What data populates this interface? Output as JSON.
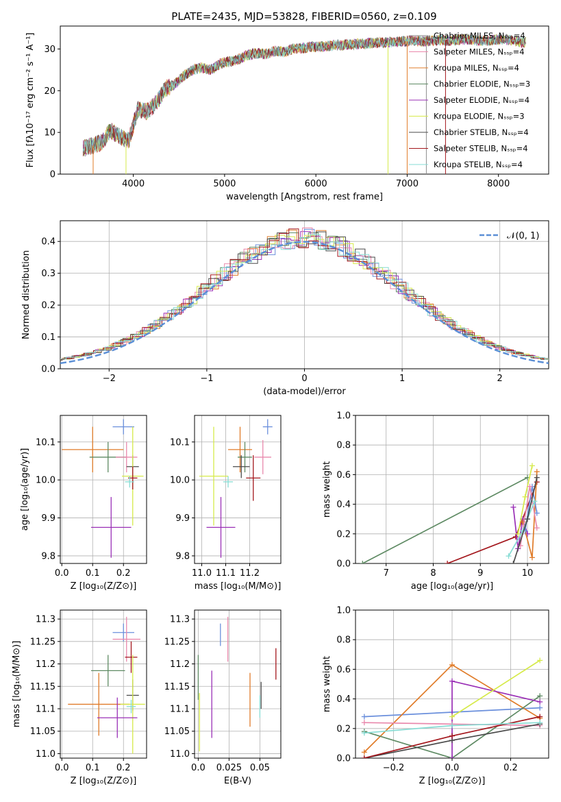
{
  "figure": {
    "title": "PLATE=2435, MJD=53828, FIBERID=0560, z=0.109"
  },
  "colors": {
    "cornflower": "#6a8fdc",
    "orange": "#e07b28",
    "sage": "#5e8a63",
    "purple": "#9a2fb6",
    "pink": "#e988ac",
    "lime": "#d6ea4a",
    "dark": "#4a4a4a",
    "crimson": "#a3161c",
    "aqua": "#86dcd4",
    "gray": "#8c8c8c",
    "normal": "#5b8fd6"
  },
  "chart_data": [
    {
      "id": "spectrum",
      "type": "line",
      "xlabel": "wavelength [Angstrom, rest frame]",
      "ylabel": "Flux [fλ10⁻¹⁷ erg cm⁻² s⁻¹ A⁻¹]",
      "xlim": [
        3200,
        8550
      ],
      "ylim": [
        0,
        35.5
      ],
      "xticks": [
        4000,
        5000,
        6000,
        7000,
        8000
      ],
      "yticks": [
        0,
        10,
        20,
        30
      ],
      "grid": false,
      "legend_position": "top-right",
      "legend": [
        "Chabrier MILES, Nₛₛₚ=4",
        "Salpeter MILES, Nₛₛₚ=4",
        "Kroupa MILES, Nₛₛₚ=4",
        "Chabrier ELODIE, Nₛₛₚ=3",
        "Salpeter ELODIE, Nₛₛₚ=4",
        "Kroupa ELODIE, Nₛₛₚ=3",
        "Chabrier STELIB, Nₛₛₚ=4",
        "Salpeter STELIB, Nₛₛₚ=4",
        "Kroupa STELIB, Nₛₛₚ=4"
      ],
      "x": [
        3450,
        3550,
        3650,
        3750,
        3850,
        3950,
        4050,
        4150,
        4250,
        4350,
        4450,
        4550,
        4650,
        4750,
        4850,
        4950,
        5050,
        5150,
        5250,
        5350,
        5450,
        5550,
        5650,
        5750,
        5850,
        5950,
        6050,
        6150,
        6250,
        6350,
        6450,
        6550,
        6650,
        6750,
        6850,
        6950,
        7050,
        7150,
        7250,
        7350,
        7450,
        7550,
        7650,
        7750,
        7850,
        7950,
        8050,
        8150,
        8250
      ],
      "y": [
        6.2,
        6.8,
        7.5,
        10.5,
        9.0,
        8.0,
        15.5,
        15.0,
        17.0,
        20.5,
        21.5,
        23.5,
        25.0,
        25.5,
        25.0,
        26.5,
        27.0,
        27.5,
        28.5,
        29.0,
        28.8,
        29.5,
        29.3,
        30.0,
        30.2,
        30.5,
        30.5,
        30.8,
        31.0,
        31.0,
        31.2,
        31.3,
        31.5,
        31.5,
        31.7,
        31.8,
        32.0,
        31.8,
        32.0,
        32.1,
        32.0,
        32.2,
        32.3,
        32.1,
        32.0,
        32.2,
        32.3,
        32.1,
        31.6
      ]
    },
    {
      "id": "residuals",
      "type": "line",
      "xlabel": "(data-model)/error",
      "ylabel": "Normed distribution",
      "xlim": [
        -2.5,
        2.5
      ],
      "ylim": [
        0,
        0.465
      ],
      "xticks": [
        -2,
        -1,
        0,
        1,
        2
      ],
      "yticks": [
        0.0,
        0.1,
        0.2,
        0.3,
        0.4
      ],
      "grid": true,
      "legend_position": "top-right",
      "legend": [
        "𝒩(0, 1)"
      ],
      "normal_curve": {
        "mu": 0,
        "sigma": 1
      }
    },
    {
      "id": "age-vs-Z",
      "type": "scatter",
      "xlabel": "Z [log₁₀(Z/Z⊙)]",
      "ylabel": "age  [log₁₀(age/yr)]",
      "xlim": [
        -0.005,
        0.275
      ],
      "ylim": [
        9.78,
        10.17
      ],
      "xticks": [
        0.0,
        0.1,
        0.2
      ],
      "yticks": [
        9.8,
        9.9,
        10.0,
        10.1
      ],
      "grid": true,
      "points": [
        {
          "c": "cornflower",
          "x": 0.2,
          "xe": 0.035,
          "y": 10.14,
          "ye": 0.02
        },
        {
          "c": "orange",
          "x": 0.1,
          "xe": 0.1,
          "y": 10.08,
          "ye": 0.06
        },
        {
          "c": "sage",
          "x": 0.15,
          "xe": 0.06,
          "y": 10.06,
          "ye": 0.04
        },
        {
          "c": "pink",
          "x": 0.21,
          "xe": 0.035,
          "y": 10.06,
          "ye": 0.04
        },
        {
          "c": "dark",
          "x": 0.23,
          "xe": 0.02,
          "y": 10.035,
          "ye": 0.03
        },
        {
          "c": "lime",
          "x": 0.23,
          "xe": 0.035,
          "y": 10.01,
          "ye": 0.13
        },
        {
          "c": "crimson",
          "x": 0.23,
          "xe": 0.015,
          "y": 10.005,
          "ye": 0.03
        },
        {
          "c": "aqua",
          "x": 0.22,
          "xe": 0.015,
          "y": 9.995,
          "ye": 0.015
        },
        {
          "c": "purple",
          "x": 0.16,
          "xe": 0.065,
          "y": 9.875,
          "ye": 0.08
        }
      ]
    },
    {
      "id": "age-vs-mass",
      "type": "scatter",
      "xlabel": "mass [log₁₀(M/M⊙)]",
      "ylabel": "",
      "xlim": [
        10.97,
        11.33
      ],
      "ylim": [
        9.78,
        10.17
      ],
      "xticks": [
        11.0,
        11.1,
        11.2
      ],
      "yticks": [
        9.8,
        9.9,
        10.0,
        10.1
      ],
      "grid": true,
      "points": [
        {
          "c": "cornflower",
          "x": 11.275,
          "xe": 0.02,
          "y": 10.14,
          "ye": 0.02
        },
        {
          "c": "orange",
          "x": 11.16,
          "xe": 0.05,
          "y": 10.08,
          "ye": 0.06
        },
        {
          "c": "sage",
          "x": 11.18,
          "xe": 0.03,
          "y": 10.06,
          "ye": 0.04
        },
        {
          "c": "pink",
          "x": 11.255,
          "xe": 0.035,
          "y": 10.06,
          "ye": 0.045
        },
        {
          "c": "dark",
          "x": 11.165,
          "xe": 0.035,
          "y": 10.035,
          "ye": 0.03
        },
        {
          "c": "lime",
          "x": 11.05,
          "xe": 0.06,
          "y": 10.01,
          "ye": 0.13
        },
        {
          "c": "crimson",
          "x": 11.215,
          "xe": 0.03,
          "y": 10.005,
          "ye": 0.06
        },
        {
          "c": "aqua",
          "x": 11.11,
          "xe": 0.02,
          "y": 9.995,
          "ye": 0.015
        },
        {
          "c": "purple",
          "x": 11.08,
          "xe": 0.06,
          "y": 9.875,
          "ye": 0.08
        }
      ]
    },
    {
      "id": "massweight-vs-age",
      "type": "line",
      "xlabel": "age  [log₁₀(age/yr)]",
      "ylabel": "mass weight",
      "xlim": [
        6.35,
        10.45
      ],
      "ylim": [
        0,
        1.0
      ],
      "xticks": [
        7,
        8,
        9,
        10
      ],
      "yticks": [
        0.0,
        0.2,
        0.4,
        0.6,
        0.8,
        1.0
      ],
      "grid": true,
      "series": [
        {
          "c": "sage",
          "x": [
            6.5,
            10.0
          ],
          "y": [
            0.0,
            0.58
          ]
        },
        {
          "c": "crimson",
          "x": [
            8.3,
            9.75,
            10.2
          ],
          "y": [
            0.0,
            0.18,
            0.55
          ]
        },
        {
          "c": "purple",
          "x": [
            9.7,
            9.8,
            9.9,
            10.0
          ],
          "y": [
            0.38,
            0.1,
            0.3,
            0.2
          ]
        },
        {
          "c": "lime",
          "x": [
            9.8,
            9.95,
            10.1
          ],
          "y": [
            0.2,
            0.45,
            0.66
          ]
        },
        {
          "c": "orange",
          "x": [
            9.9,
            10.1,
            10.2
          ],
          "y": [
            0.28,
            0.04,
            0.62
          ]
        },
        {
          "c": "cornflower",
          "x": [
            9.95,
            10.1,
            10.2
          ],
          "y": [
            0.22,
            0.52,
            0.34
          ]
        },
        {
          "c": "pink",
          "x": [
            9.85,
            10.05,
            10.2
          ],
          "y": [
            0.12,
            0.52,
            0.24
          ]
        },
        {
          "c": "aqua",
          "x": [
            9.6,
            9.9,
            10.15
          ],
          "y": [
            0.05,
            0.22,
            0.42
          ]
        },
        {
          "c": "dark",
          "x": [
            9.7,
            10.0,
            10.2
          ],
          "y": [
            0.0,
            0.3,
            0.58
          ]
        }
      ]
    },
    {
      "id": "mass-vs-Z",
      "type": "scatter",
      "xlabel": "Z [log₁₀(Z/Z⊙)]",
      "ylabel": "mass [log₁₀(M/M⊙)]",
      "xlim": [
        -0.005,
        0.275
      ],
      "ylim": [
        10.99,
        11.32
      ],
      "xticks": [
        0.0,
        0.1,
        0.2
      ],
      "yticks": [
        11.0,
        11.05,
        11.1,
        11.15,
        11.2,
        11.25,
        11.3
      ],
      "grid": true,
      "points": [
        {
          "c": "cornflower",
          "x": 0.2,
          "xe": 0.035,
          "y": 11.27,
          "ye": 0.02
        },
        {
          "c": "pink",
          "x": 0.21,
          "xe": 0.045,
          "y": 11.255,
          "ye": 0.05
        },
        {
          "c": "crimson",
          "x": 0.225,
          "xe": 0.02,
          "y": 11.215,
          "ye": 0.035
        },
        {
          "c": "sage",
          "x": 0.15,
          "xe": 0.055,
          "y": 11.185,
          "ye": 0.035
        },
        {
          "c": "dark",
          "x": 0.23,
          "xe": 0.02,
          "y": 11.13,
          "ye": 0.035
        },
        {
          "c": "orange",
          "x": 0.12,
          "xe": 0.1,
          "y": 11.11,
          "ye": 0.07
        },
        {
          "c": "lime",
          "x": 0.23,
          "xe": 0.04,
          "y": 11.11,
          "ye": 0.11
        },
        {
          "c": "aqua",
          "x": 0.225,
          "xe": 0.015,
          "y": 11.105,
          "ye": 0.015
        },
        {
          "c": "purple",
          "x": 0.18,
          "xe": 0.065,
          "y": 11.08,
          "ye": 0.045
        }
      ]
    },
    {
      "id": "mass-vs-EBV",
      "type": "scatter",
      "xlabel": "E(B-V)",
      "ylabel": "",
      "xlim": [
        -0.003,
        0.067
      ],
      "ylim": [
        10.99,
        11.32
      ],
      "xticks": [
        0.0,
        0.025,
        0.05
      ],
      "yticks": [
        11.0,
        11.05,
        11.1,
        11.15,
        11.2,
        11.25,
        11.3
      ],
      "grid": true,
      "points": [
        {
          "c": "sage",
          "x": 0.0,
          "xe": 0,
          "y": 11.17,
          "ye": 0.05
        },
        {
          "c": "lime",
          "x": 0.001,
          "xe": 0,
          "y": 11.07,
          "ye": 0.065
        },
        {
          "c": "purple",
          "x": 0.011,
          "xe": 0,
          "y": 11.11,
          "ye": 0.075
        },
        {
          "c": "cornflower",
          "x": 0.018,
          "xe": 0,
          "y": 11.265,
          "ye": 0.025
        },
        {
          "c": "pink",
          "x": 0.024,
          "xe": 0,
          "y": 11.255,
          "ye": 0.05
        },
        {
          "c": "orange",
          "x": 0.042,
          "xe": 0,
          "y": 11.12,
          "ye": 0.06
        },
        {
          "c": "aqua",
          "x": 0.05,
          "xe": 0,
          "y": 11.105,
          "ye": 0.025
        },
        {
          "c": "dark",
          "x": 0.051,
          "xe": 0,
          "y": 11.13,
          "ye": 0.03
        },
        {
          "c": "crimson",
          "x": 0.063,
          "xe": 0,
          "y": 11.2,
          "ye": 0.035
        }
      ]
    },
    {
      "id": "massweight-vs-Z",
      "type": "line",
      "xlabel": "Z [log₁₀(Z/Z⊙)]",
      "ylabel": "mass weight",
      "xlim": [
        -0.33,
        0.33
      ],
      "ylim": [
        0,
        1.0
      ],
      "xticks": [
        -0.2,
        0.0,
        0.2
      ],
      "yticks": [
        0.0,
        0.2,
        0.4,
        0.6,
        0.8,
        1.0
      ],
      "grid": true,
      "series": [
        {
          "c": "cornflower",
          "x": [
            -0.3,
            0.0,
            0.3
          ],
          "y": [
            0.28,
            0.31,
            0.34
          ]
        },
        {
          "c": "orange",
          "x": [
            -0.3,
            0.0,
            0.3
          ],
          "y": [
            0.04,
            0.63,
            0.27
          ]
        },
        {
          "c": "sage",
          "x": [
            -0.3,
            0.0,
            0.3
          ],
          "y": [
            0.18,
            0.0,
            0.42
          ]
        },
        {
          "c": "purple",
          "x": [
            0.0,
            0.0,
            0.3
          ],
          "y": [
            0.0,
            0.52,
            0.38
          ]
        },
        {
          "c": "pink",
          "x": [
            -0.3,
            0.0,
            0.3
          ],
          "y": [
            0.24,
            0.23,
            0.22
          ]
        },
        {
          "c": "lime",
          "x": [
            0.0,
            0.3
          ],
          "y": [
            0.28,
            0.66
          ]
        },
        {
          "c": "dark",
          "x": [
            -0.3,
            0.0,
            0.3
          ],
          "y": [
            0.0,
            0.12,
            0.23
          ]
        },
        {
          "c": "crimson",
          "x": [
            -0.3,
            0.0,
            0.3
          ],
          "y": [
            0.0,
            0.15,
            0.28
          ]
        },
        {
          "c": "aqua",
          "x": [
            -0.3,
            0.0,
            0.3
          ],
          "y": [
            0.17,
            0.22,
            0.24
          ]
        }
      ]
    }
  ]
}
